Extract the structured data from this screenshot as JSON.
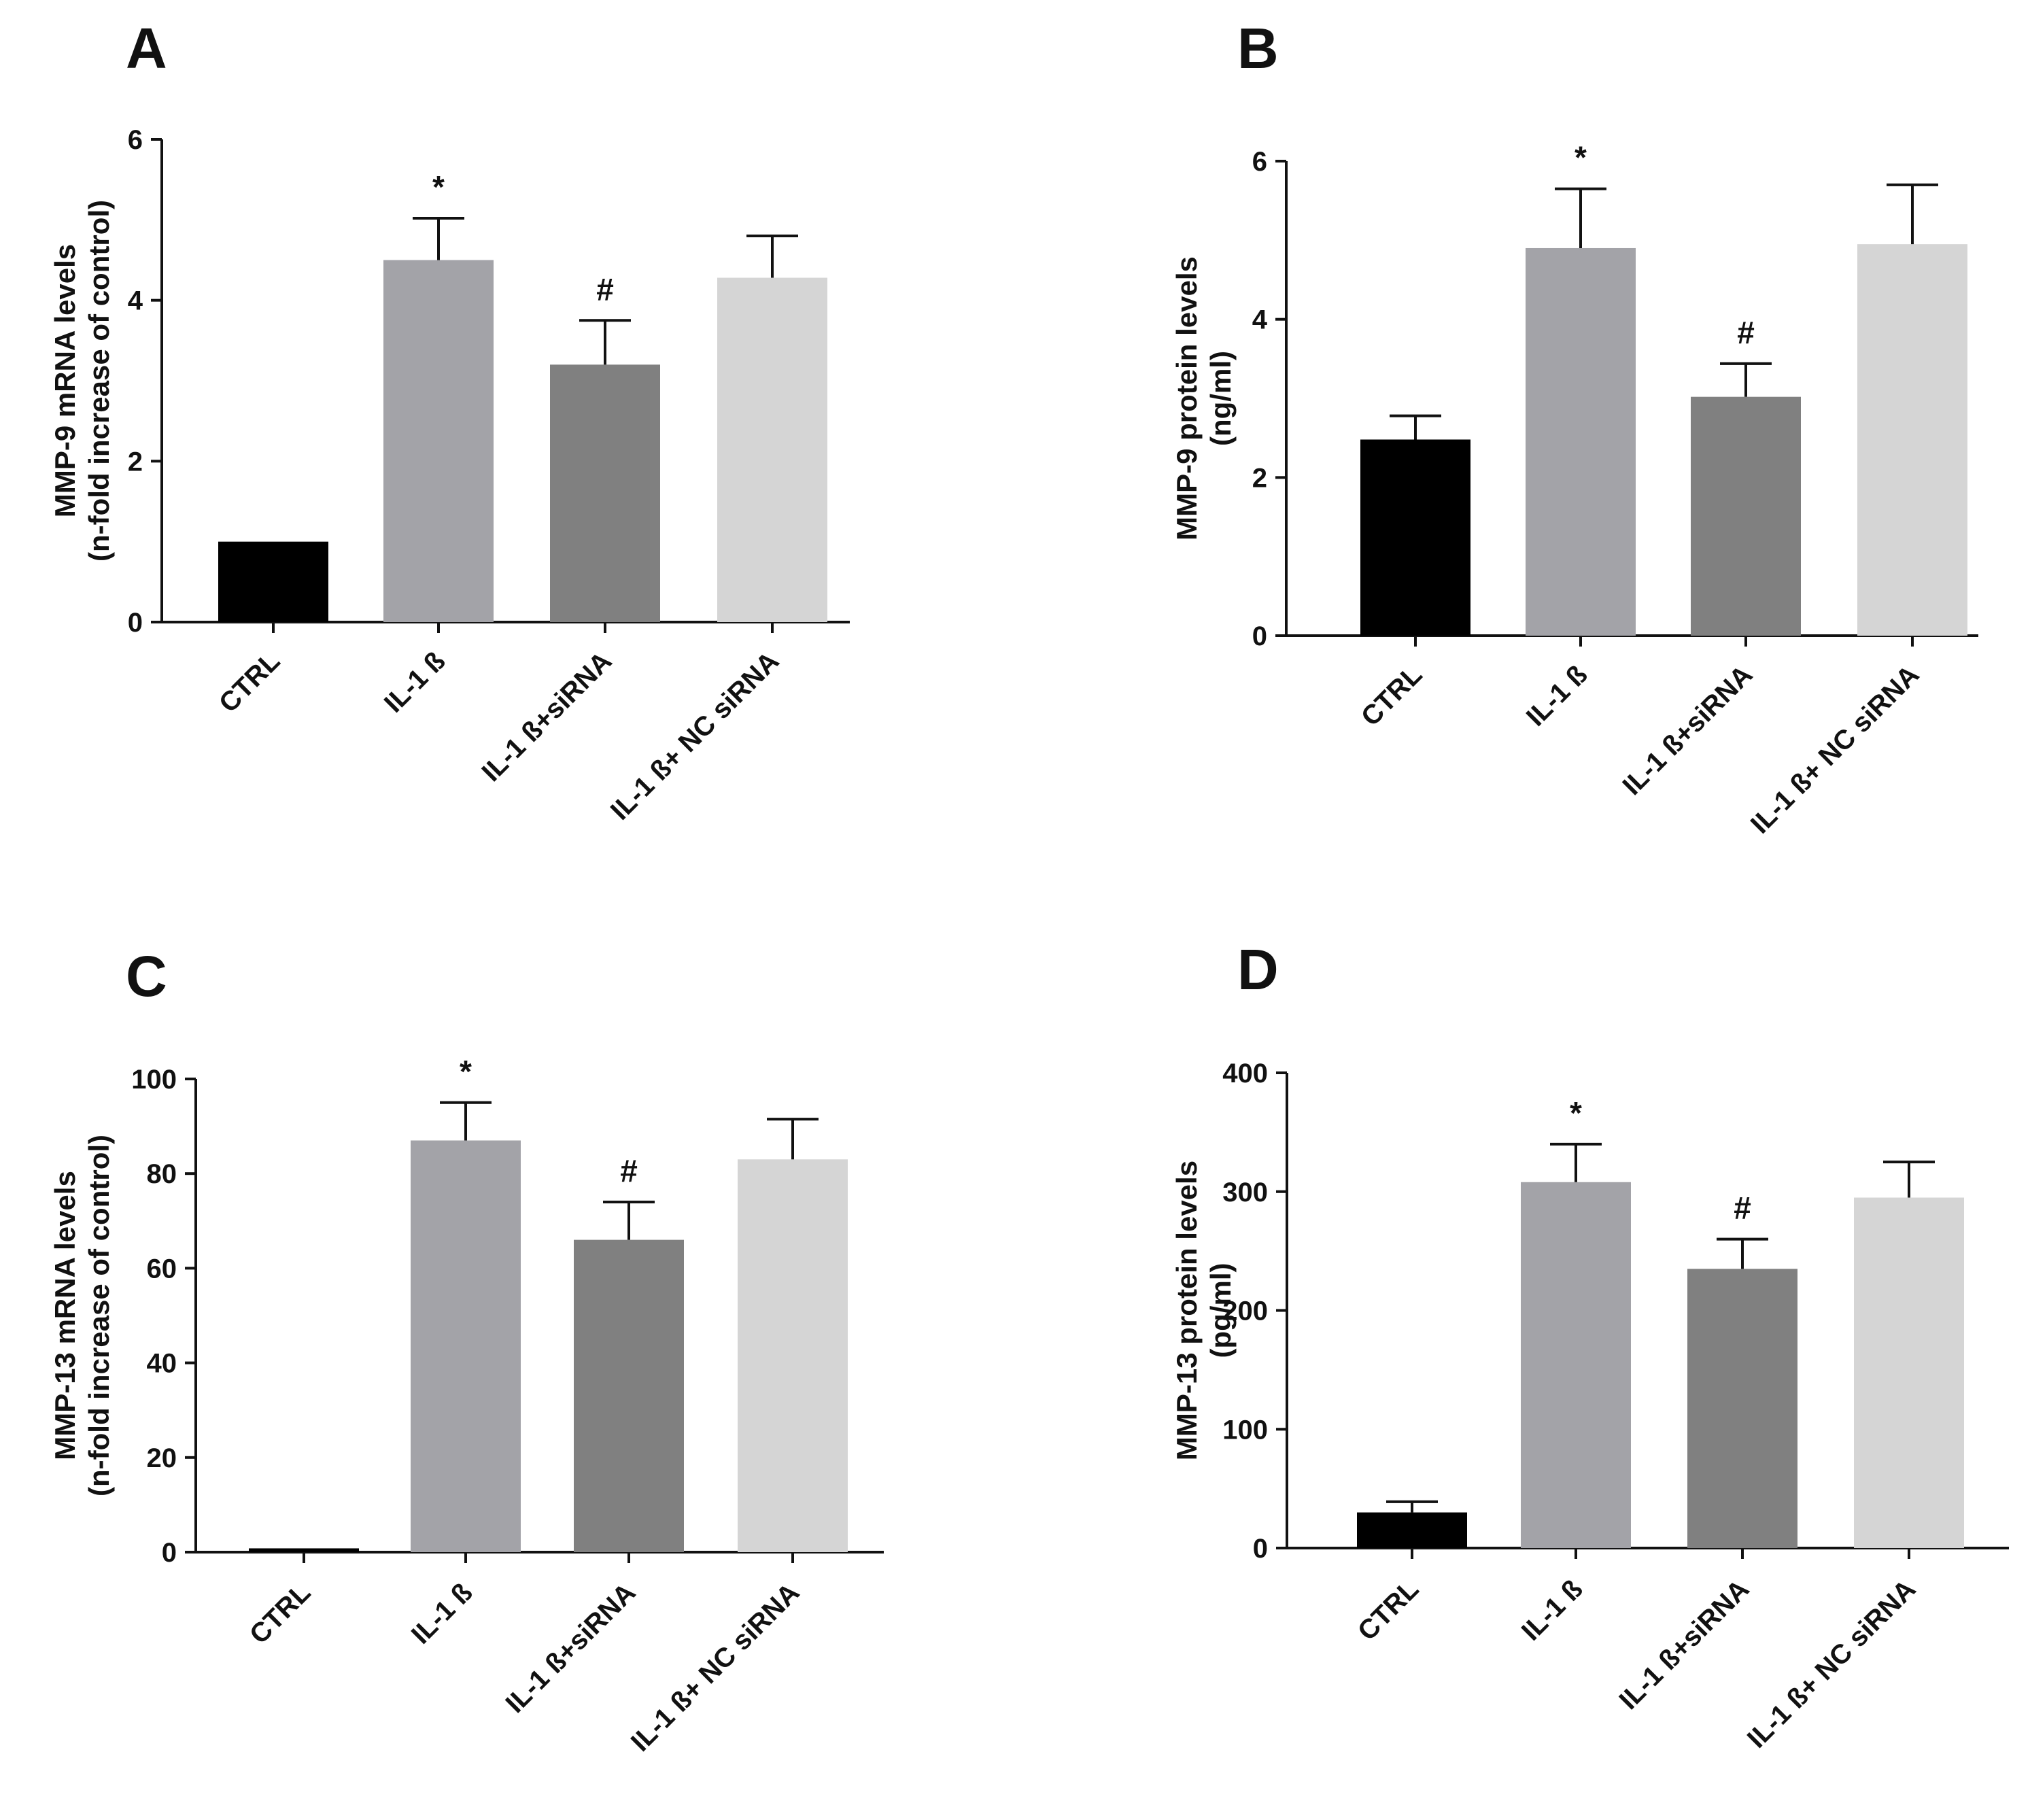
{
  "colors": {
    "ctrl": "#000000",
    "il1b": "#a3a3a8",
    "il1b_sirna": "#808080",
    "il1b_nc_sirna": "#d5d5d5",
    "axis": "#111111"
  },
  "chart_data": [
    {
      "panel": "A",
      "type": "bar",
      "ylabel": [
        "MMP-9 mRNA levels",
        "(n-fold  increase of control)"
      ],
      "categories": [
        "CTRL",
        "IL-1 ß",
        "IL-1 ß+siRNA",
        "IL-1 ß+ NC siRNA"
      ],
      "values": [
        1.0,
        4.5,
        3.2,
        4.28
      ],
      "errors": [
        0,
        0.52,
        0.55,
        0.52
      ],
      "annotations": [
        "",
        "*",
        "#",
        ""
      ],
      "ylim": [
        0,
        6
      ],
      "yticks": [
        0,
        2,
        4,
        6
      ]
    },
    {
      "panel": "B",
      "type": "bar",
      "ylabel": [
        "MMP-9 protein levels",
        "(ng/ml)"
      ],
      "categories": [
        "CTRL",
        "IL-1 ß",
        "IL-1 ß+siRNA",
        "IL-1 ß+ NC siRNA"
      ],
      "values": [
        2.48,
        4.9,
        3.02,
        4.95
      ],
      "errors": [
        0.3,
        0.75,
        0.42,
        0.75
      ],
      "annotations": [
        "",
        "*",
        "#",
        ""
      ],
      "ylim": [
        0,
        6
      ],
      "yticks": [
        0,
        2,
        4,
        6
      ]
    },
    {
      "panel": "C",
      "type": "bar",
      "ylabel": [
        "MMP-13 mRNA levels",
        "(n-fold  increase of control)"
      ],
      "categories": [
        "CTRL",
        "IL-1 ß",
        "IL-1 ß+siRNA",
        "IL-1 ß+ NC siRNA"
      ],
      "values": [
        0.8,
        87,
        66,
        83
      ],
      "errors": [
        0,
        8,
        8,
        8.5
      ],
      "annotations": [
        "",
        "*",
        "#",
        ""
      ],
      "ylim": [
        0,
        100
      ],
      "yticks": [
        0,
        20,
        40,
        60,
        80,
        100
      ]
    },
    {
      "panel": "D",
      "type": "bar",
      "ylabel": [
        "MMP-13 protein levels",
        "(pg/ml)"
      ],
      "categories": [
        "CTRL",
        "IL-1 ß",
        "IL-1 ß+siRNA",
        "IL-1 ß+ NC siRNA"
      ],
      "values": [
        30,
        308,
        235,
        295
      ],
      "errors": [
        9,
        32,
        25,
        30
      ],
      "annotations": [
        "",
        "*",
        "#",
        ""
      ],
      "ylim": [
        0,
        400
      ],
      "yticks": [
        0,
        100,
        200,
        300,
        400
      ]
    }
  ]
}
